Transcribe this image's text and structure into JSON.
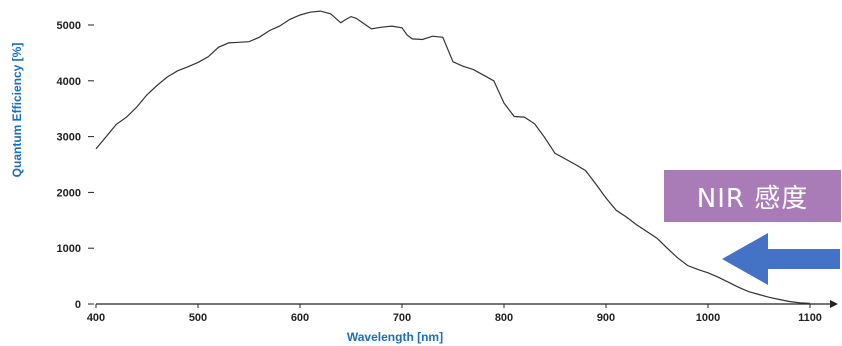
{
  "chart_data": {
    "type": "line",
    "xlabel": "Wavelength [nm]",
    "ylabel": "Quantum Efficiency [%]",
    "xlim": [
      400,
      1100
    ],
    "ylim": [
      0,
      5000
    ],
    "xticks": [
      "400",
      "500",
      "600",
      "700",
      "800",
      "900",
      "1000",
      "1100"
    ],
    "yticks": [
      "0",
      "1000",
      "2000",
      "3000",
      "4000",
      "5000"
    ],
    "grid": false,
    "series": [
      {
        "color": "#333333",
        "x": [
          400,
          410,
          420,
          430,
          440,
          450,
          460,
          470,
          480,
          490,
          500,
          510,
          520,
          530,
          540,
          550,
          560,
          570,
          580,
          590,
          600,
          610,
          620,
          630,
          640,
          645,
          650,
          655,
          660,
          670,
          680,
          690,
          700,
          705,
          710,
          720,
          730,
          740,
          750,
          760,
          770,
          780,
          790,
          800,
          810,
          820,
          830,
          840,
          850,
          860,
          870,
          880,
          890,
          900,
          910,
          920,
          930,
          940,
          950,
          960,
          970,
          980,
          990,
          1000,
          1010,
          1020,
          1030,
          1040,
          1050,
          1060,
          1070,
          1080,
          1090,
          1100
        ],
        "y": [
          2780,
          3000,
          3220,
          3350,
          3530,
          3750,
          3920,
          4070,
          4180,
          4250,
          4330,
          4430,
          4600,
          4680,
          4690,
          4700,
          4780,
          4900,
          4980,
          5100,
          5180,
          5230,
          5250,
          5200,
          5040,
          5100,
          5150,
          5120,
          5060,
          4930,
          4960,
          4980,
          4950,
          4820,
          4750,
          4740,
          4800,
          4780,
          4340,
          4260,
          4200,
          4100,
          4000,
          3600,
          3360,
          3350,
          3230,
          2980,
          2700,
          2600,
          2500,
          2390,
          2150,
          1900,
          1680,
          1560,
          1420,
          1300,
          1180,
          1000,
          830,
          690,
          620,
          560,
          480,
          390,
          300,
          220,
          170,
          120,
          80,
          45,
          20,
          10
        ]
      }
    ]
  },
  "annotation": {
    "label": "NIR 感度",
    "box_color": "#a97cb8",
    "arrow_color": "#4472c4",
    "arrow_direction": "left"
  }
}
